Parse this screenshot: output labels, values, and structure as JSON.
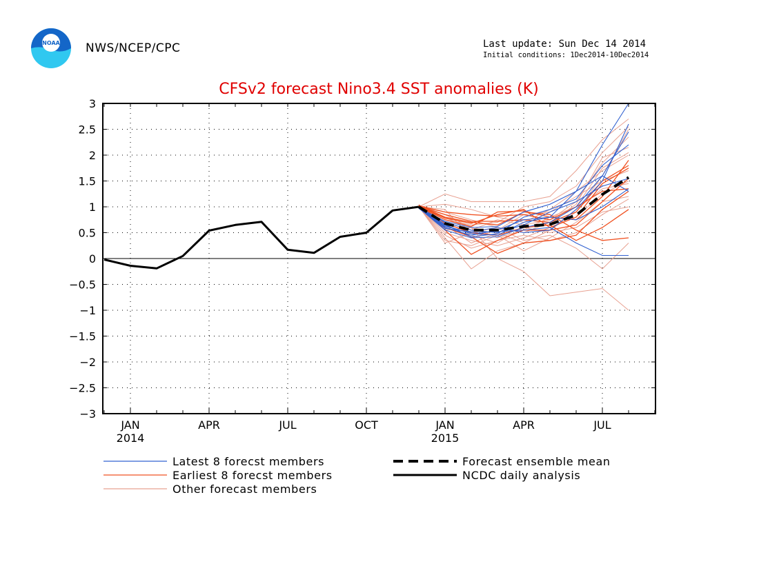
{
  "header": {
    "org": "NWS/NCEP/CPC",
    "logo_text": "NOAA",
    "last_update": "Last update: Sun Dec 14 2014",
    "initial_conditions": "Initial conditions: 1Dec2014-10Dec2014"
  },
  "colors": {
    "title": "#e00000",
    "latest": "#3060d0",
    "earliest": "#f05020",
    "other": "#e8a090",
    "mean": "#000000",
    "obs": "#000000",
    "zero_line": "#000000",
    "logo_blue": "#1466c8",
    "logo_cyan": "#30c8f0"
  },
  "chart_data": {
    "type": "line",
    "title": "CFSv2 forecast Nino3.4 SST anomalies (K)",
    "xlabel": "",
    "ylabel": "",
    "ylim": [
      -3,
      3
    ],
    "yticks": [
      3,
      2.5,
      2,
      1.5,
      1,
      0.5,
      0,
      -0.5,
      -1,
      -1.5,
      -2,
      -2.5,
      -3
    ],
    "ytick_labels": [
      "3",
      "2.5",
      "2",
      "1.5",
      "1",
      "0.5",
      "0",
      "−0.5",
      "−1",
      "−1.5",
      "−2",
      "−2.5",
      "−3"
    ],
    "x_ticks": [
      {
        "month": "2014-01",
        "label": "JAN",
        "sublabel": "2014"
      },
      {
        "month": "2014-04",
        "label": "APR",
        "sublabel": ""
      },
      {
        "month": "2014-07",
        "label": "JUL",
        "sublabel": ""
      },
      {
        "month": "2014-10",
        "label": "OCT",
        "sublabel": ""
      },
      {
        "month": "2015-01",
        "label": "JAN",
        "sublabel": "2015"
      },
      {
        "month": "2015-04",
        "label": "APR",
        "sublabel": ""
      },
      {
        "month": "2015-07",
        "label": "JUL",
        "sublabel": ""
      }
    ],
    "x": [
      "2013-12",
      "2014-01",
      "2014-02",
      "2014-03",
      "2014-04",
      "2014-05",
      "2014-06",
      "2014-07",
      "2014-08",
      "2014-09",
      "2014-10",
      "2014-11",
      "2014-12",
      "2015-01",
      "2015-02",
      "2015-03",
      "2015-04",
      "2015-05",
      "2015-06",
      "2015-07",
      "2015-08"
    ],
    "forecast_x": [
      "2014-12",
      "2015-01",
      "2015-02",
      "2015-03",
      "2015-04",
      "2015-05",
      "2015-06",
      "2015-07",
      "2015-08"
    ],
    "series": [
      {
        "name": "NCDC daily analysis",
        "kind": "obs",
        "x": [
          "2013-12",
          "2014-01",
          "2014-02",
          "2014-03",
          "2014-04",
          "2014-05",
          "2014-06",
          "2014-07",
          "2014-08",
          "2014-09",
          "2014-10",
          "2014-11",
          "2014-12"
        ],
        "values": [
          -0.02,
          -0.14,
          -0.19,
          0.05,
          0.54,
          0.65,
          0.71,
          0.17,
          0.11,
          0.42,
          0.5,
          0.93,
          1.0
        ]
      },
      {
        "name": "Forecast ensemble mean",
        "kind": "mean",
        "x": [
          "2014-12",
          "2015-01",
          "2015-02",
          "2015-03",
          "2015-04",
          "2015-05",
          "2015-06",
          "2015-07",
          "2015-08"
        ],
        "values": [
          1.0,
          0.68,
          0.55,
          0.55,
          0.62,
          0.66,
          0.84,
          1.24,
          1.57
        ]
      }
    ],
    "members": {
      "latest": [
        [
          0.98,
          0.55,
          0.4,
          0.42,
          0.6,
          0.7,
          1.0,
          1.6,
          2.45
        ],
        [
          0.98,
          0.6,
          0.45,
          0.55,
          0.75,
          0.8,
          1.3,
          2.2,
          3.0
        ],
        [
          0.97,
          0.7,
          0.55,
          0.5,
          0.65,
          0.9,
          1.1,
          1.4,
          1.55
        ],
        [
          0.98,
          0.62,
          0.5,
          0.52,
          0.55,
          0.6,
          0.3,
          0.06,
          0.06
        ],
        [
          0.99,
          0.66,
          0.42,
          0.48,
          0.8,
          0.95,
          1.15,
          1.8,
          2.2
        ],
        [
          0.98,
          0.72,
          0.6,
          0.62,
          0.9,
          1.05,
          1.3,
          1.6,
          1.3
        ],
        [
          0.97,
          0.58,
          0.52,
          0.6,
          0.5,
          0.55,
          0.95,
          1.5,
          2.6
        ],
        [
          0.98,
          0.64,
          0.48,
          0.45,
          0.7,
          0.8,
          0.75,
          1.0,
          1.35
        ]
      ],
      "earliest": [
        [
          1.02,
          0.75,
          0.62,
          0.9,
          0.92,
          0.8,
          0.75,
          1.2,
          1.9
        ],
        [
          1.03,
          0.8,
          0.7,
          0.65,
          0.9,
          0.85,
          0.55,
          0.35,
          0.4
        ],
        [
          1.01,
          0.6,
          0.42,
          0.1,
          0.3,
          0.35,
          0.45,
          0.95,
          1.3
        ],
        [
          1.02,
          0.85,
          0.72,
          0.72,
          0.75,
          0.7,
          0.9,
          1.5,
          1.8
        ],
        [
          1.04,
          0.55,
          0.08,
          0.35,
          0.55,
          0.55,
          0.65,
          1.1,
          1.55
        ],
        [
          1.02,
          0.9,
          0.85,
          0.82,
          0.85,
          0.75,
          1.0,
          1.3,
          1.35
        ],
        [
          1.03,
          0.68,
          0.5,
          0.45,
          0.6,
          0.65,
          0.35,
          0.6,
          0.95
        ],
        [
          1.02,
          0.78,
          0.68,
          0.85,
          0.95,
          0.6,
          0.8,
          1.45,
          1.75
        ]
      ],
      "other": [
        [
          1.0,
          1.25,
          1.1,
          1.1,
          1.1,
          1.2,
          1.7,
          2.3,
          2.7
        ],
        [
          1.0,
          0.4,
          -0.2,
          0.15,
          0.3,
          0.55,
          0.9,
          1.6,
          2.5
        ],
        [
          1.0,
          0.85,
          0.6,
          0.0,
          -0.25,
          -0.72,
          -0.65,
          -0.58,
          -1.0
        ],
        [
          1.0,
          0.3,
          0.5,
          0.6,
          0.35,
          0.45,
          0.2,
          -0.2,
          0.3
        ],
        [
          1.0,
          0.9,
          0.75,
          0.6,
          0.5,
          0.7,
          1.05,
          1.95,
          2.15
        ],
        [
          1.0,
          0.5,
          0.35,
          0.25,
          0.4,
          0.6,
          0.8,
          1.25,
          1.5
        ],
        [
          1.0,
          1.05,
          0.95,
          0.8,
          0.7,
          0.95,
          1.3,
          1.7,
          2.0
        ],
        [
          1.0,
          0.35,
          0.25,
          0.45,
          0.15,
          0.4,
          0.7,
          1.1,
          1.2
        ],
        [
          1.0,
          0.75,
          0.65,
          0.7,
          1.0,
          1.1,
          1.4,
          2.05,
          2.55
        ],
        [
          1.0,
          0.6,
          0.45,
          0.3,
          0.6,
          0.5,
          0.6,
          0.9,
          1.0
        ],
        [
          1.0,
          0.95,
          0.4,
          0.55,
          0.85,
          0.9,
          1.2,
          1.5,
          1.7
        ],
        [
          1.0,
          0.45,
          0.2,
          0.35,
          0.45,
          0.35,
          0.5,
          0.85,
          1.15
        ],
        [
          1.0,
          0.8,
          0.55,
          0.75,
          0.65,
          0.75,
          1.1,
          1.85,
          2.35
        ],
        [
          1.0,
          0.65,
          0.3,
          0.5,
          0.3,
          0.55,
          0.95,
          1.35,
          1.45
        ],
        [
          1.0,
          0.55,
          0.6,
          0.4,
          0.55,
          0.8,
          1.0,
          1.75,
          2.05
        ]
      ]
    },
    "grid": true,
    "zero_line": true,
    "legend": {
      "placement": "below",
      "entries": [
        {
          "key": "latest",
          "label": "Latest 8 forecst members",
          "style": "thin"
        },
        {
          "key": "earliest",
          "label": "Earliest 8 forecst members",
          "style": "thin"
        },
        {
          "key": "other",
          "label": "Other forecast members",
          "style": "thin"
        },
        {
          "key": "mean",
          "label": "Forecast ensemble mean",
          "style": "dashed"
        },
        {
          "key": "obs",
          "label": "NCDC daily analysis",
          "style": "solid"
        }
      ]
    }
  }
}
